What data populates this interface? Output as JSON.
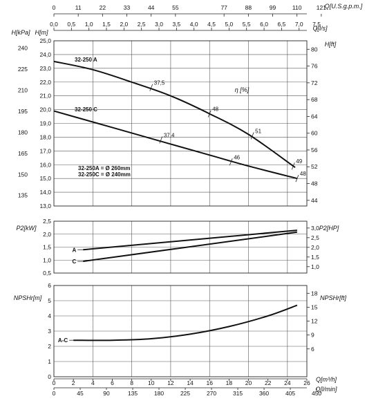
{
  "chart_data": [
    {
      "panel": "head",
      "type": "line",
      "left_label_outer": "H[kPa]",
      "left_label_inner": "H[m]",
      "right_label": "H[ft]",
      "left_ticks_m": [
        "25,0",
        "24,0",
        "23,0",
        "22,0",
        "21,0",
        "20,0",
        "19,0",
        "18,0",
        "17,0",
        "16,0",
        "15,0",
        "14,0",
        "13,0"
      ],
      "left_ticks_kpa": [
        "240",
        "225",
        "210",
        "195",
        "180",
        "165",
        "150",
        "135"
      ],
      "right_ticks_ft": [
        "80",
        "76",
        "72",
        "68",
        "64",
        "60",
        "56",
        "52",
        "48",
        "44"
      ],
      "ylim": [
        13,
        25
      ],
      "xlim": [
        0,
        26
      ],
      "series": [
        {
          "name": "32-250 A",
          "x": [
            0,
            4,
            8,
            12,
            16,
            20,
            24.8
          ],
          "y": [
            23.5,
            22.9,
            22.0,
            21.0,
            19.7,
            18.2,
            15.8
          ]
        },
        {
          "name": "32-250 C",
          "x": [
            0,
            4,
            8,
            12,
            16,
            20,
            25
          ],
          "y": [
            19.9,
            19.1,
            18.3,
            17.5,
            16.7,
            15.9,
            15.0
          ]
        }
      ],
      "efficiency_label": "η [%]",
      "efficiency_marks_A": [
        {
          "label": "37,5",
          "x": 10,
          "y": 21.6
        },
        {
          "label": "48",
          "x": 16,
          "y": 19.7
        },
        {
          "label": "51",
          "x": 20.4,
          "y": 18.1
        },
        {
          "label": "49",
          "x": 24.6,
          "y": 15.9
        }
      ],
      "efficiency_marks_C": [
        {
          "label": "37,4",
          "x": 11,
          "y": 17.8
        },
        {
          "label": "46",
          "x": 18.2,
          "y": 16.2
        },
        {
          "label": "48",
          "x": 25,
          "y": 15.0
        }
      ],
      "note_lines": [
        "32-250A = Ø 260mm",
        "32-250C = Ø 240mm"
      ]
    },
    {
      "panel": "power",
      "type": "line",
      "left_label": "P2[kW]",
      "right_label": "P2[HP]",
      "left_ticks": [
        "2,5",
        "2,0",
        "1,5",
        "1,0",
        "0,5"
      ],
      "right_ticks": [
        "3,0",
        "2,5",
        "2,0",
        "1,5",
        "1,0"
      ],
      "ylim": [
        0.5,
        2.5
      ],
      "xlim": [
        0,
        26
      ],
      "series": [
        {
          "name": "A",
          "x": [
            3,
            25
          ],
          "y": [
            1.4,
            2.15
          ]
        },
        {
          "name": "C",
          "x": [
            3,
            25
          ],
          "y": [
            0.95,
            2.08
          ]
        }
      ]
    },
    {
      "panel": "npsh",
      "type": "line",
      "left_label": "NPSHr[m]",
      "right_label": "NPSHr[ft]",
      "left_ticks": [
        "6",
        "5",
        "4",
        "3",
        "2",
        "1",
        "0"
      ],
      "right_ticks": [
        "18",
        "15",
        "12",
        "9",
        "6"
      ],
      "ylim": [
        0,
        6
      ],
      "xlim": [
        0,
        26
      ],
      "series": [
        {
          "name": "A-C",
          "x": [
            2,
            6,
            10,
            14,
            18,
            22,
            25
          ],
          "y": [
            2.4,
            2.4,
            2.5,
            2.8,
            3.3,
            4.0,
            4.7
          ]
        }
      ]
    }
  ],
  "top_axis_label": "Q[U.S.g.p.m.]",
  "top_axis_ticks": [
    "0",
    "11",
    "22",
    "33",
    "44",
    "55",
    "77",
    "88",
    "99",
    "110",
    "121"
  ],
  "top_axis_values": [
    0,
    11,
    22,
    33,
    44,
    55,
    77,
    88,
    99,
    110,
    121
  ],
  "ls_axis_label": "Q[l/s]",
  "ls_axis_ticks": [
    "0,0",
    "0,5",
    "1,0",
    "1,5",
    "2,0",
    "2,5",
    "3,0",
    "3,5",
    "4,0",
    "4,5",
    "5,0",
    "5,5",
    "6,0",
    "6,5",
    "7,0",
    "7,5"
  ],
  "m3h_axis_label": "Q[m³/h]",
  "m3h_axis_ticks": [
    "0",
    "2",
    "4",
    "6",
    "8",
    "10",
    "12",
    "14",
    "16",
    "18",
    "20",
    "22",
    "24",
    "26"
  ],
  "lmin_axis_label": "Q[l/min]",
  "lmin_axis_ticks": [
    "0",
    "45",
    "90",
    "135",
    "180",
    "225",
    "270",
    "315",
    "360",
    "405",
    "450"
  ]
}
